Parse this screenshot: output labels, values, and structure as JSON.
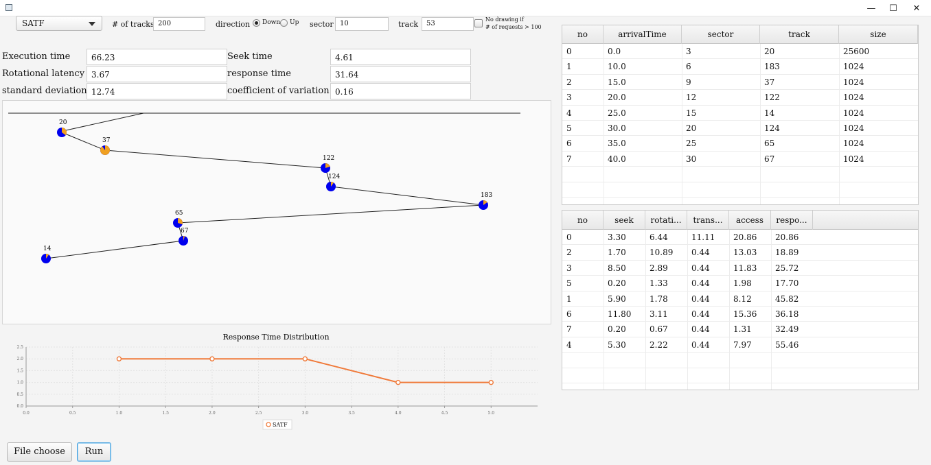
{
  "controls": {
    "algorithm": "SATF",
    "tracks_label": "# of tracks",
    "tracks_value": "200",
    "direction_label": "direction",
    "down_label": "Down",
    "up_label": "Up",
    "sector_label": "sector",
    "sector_value": "10",
    "track_label": "track",
    "track_value": "53",
    "nodraw_line1": "No drawing if",
    "nodraw_line2": "# of requests > 100"
  },
  "stats": {
    "exec_label": "Execution time",
    "exec_value": "66.23",
    "seek_label": "Seek time",
    "seek_value": "4.61",
    "rot_label": "Rotational latency",
    "rot_value": "3.67",
    "resp_label": "response time",
    "resp_value": "31.64",
    "std_label": "standard deviation",
    "std_value": "12.74",
    "cov_label": "coefficient of variation",
    "cov_value": "0.16"
  },
  "path_nodes": [
    {
      "label": "20"
    },
    {
      "label": "37"
    },
    {
      "label": "122"
    },
    {
      "label": "124"
    },
    {
      "label": "183"
    },
    {
      "label": "65"
    },
    {
      "label": "67"
    },
    {
      "label": "14"
    }
  ],
  "colors": {
    "node_primary": "#0000ee",
    "node_secondary": "#f0a020",
    "series": "#f07a3a"
  },
  "requests_table": {
    "columns": [
      "no",
      "arrivalTime",
      "sector",
      "track",
      "size"
    ],
    "rows": [
      [
        "0",
        "0.0",
        "3",
        "20",
        "25600"
      ],
      [
        "1",
        "10.0",
        "6",
        "183",
        "1024"
      ],
      [
        "2",
        "15.0",
        "9",
        "37",
        "1024"
      ],
      [
        "3",
        "20.0",
        "12",
        "122",
        "1024"
      ],
      [
        "4",
        "25.0",
        "15",
        "14",
        "1024"
      ],
      [
        "5",
        "30.0",
        "20",
        "124",
        "1024"
      ],
      [
        "6",
        "35.0",
        "25",
        "65",
        "1024"
      ],
      [
        "7",
        "40.0",
        "30",
        "67",
        "1024"
      ]
    ]
  },
  "results_table": {
    "columns": [
      "no",
      "seek",
      "rotati...",
      "trans...",
      "access",
      "respo..."
    ],
    "rows": [
      [
        "0",
        "3.30",
        "6.44",
        "11.11",
        "20.86",
        "20.86"
      ],
      [
        "2",
        "1.70",
        "10.89",
        "0.44",
        "13.03",
        "18.89"
      ],
      [
        "3",
        "8.50",
        "2.89",
        "0.44",
        "11.83",
        "25.72"
      ],
      [
        "5",
        "0.20",
        "1.33",
        "0.44",
        "1.98",
        "17.70"
      ],
      [
        "1",
        "5.90",
        "1.78",
        "0.44",
        "8.12",
        "45.82"
      ],
      [
        "6",
        "11.80",
        "3.11",
        "0.44",
        "15.36",
        "36.18"
      ],
      [
        "7",
        "0.20",
        "0.67",
        "0.44",
        "1.31",
        "32.49"
      ],
      [
        "4",
        "5.30",
        "2.22",
        "0.44",
        "7.97",
        "55.46"
      ]
    ]
  },
  "chart_data": {
    "type": "line",
    "title": "Response Time Distribution",
    "xlabel": "",
    "ylabel": "",
    "x_ticks": [
      "0.0",
      "0.5",
      "1.0",
      "1.5",
      "2.0",
      "2.5",
      "3.0",
      "3.5",
      "4.0",
      "4.5",
      "5.0"
    ],
    "y_ticks": [
      "0.0",
      "0.5",
      "1.0",
      "1.5",
      "2.0",
      "2.5"
    ],
    "xlim": [
      0,
      5.5
    ],
    "ylim": [
      0,
      2.5
    ],
    "grid": true,
    "legend_position": "bottom",
    "series": [
      {
        "name": "SATF",
        "x": [
          1,
          2,
          3,
          4,
          5
        ],
        "y": [
          2,
          2,
          2,
          1,
          1
        ]
      }
    ]
  },
  "buttons": {
    "file_choose": "File choose",
    "run": "Run"
  },
  "window": {
    "minimize": "—",
    "maximize": "☐",
    "close": "✕"
  }
}
